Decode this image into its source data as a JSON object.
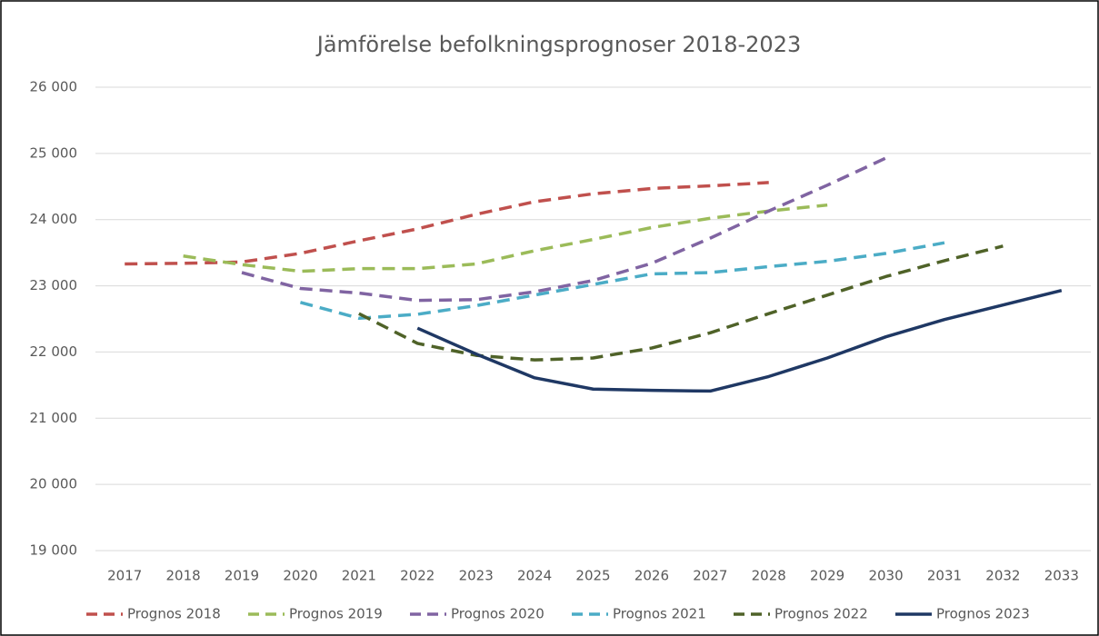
{
  "chart_data": {
    "type": "line",
    "title": "Jämförelse befolkningsprognoser 2018-2023",
    "categories": [
      "2017",
      "2018",
      "2019",
      "2020",
      "2021",
      "2022",
      "2023",
      "2024",
      "2025",
      "2026",
      "2027",
      "2028",
      "2029",
      "2030",
      "2031",
      "2032",
      "2033"
    ],
    "series": [
      {
        "name": "Prognos 2018",
        "color": "#c0504d",
        "dashed": true,
        "values": [
          23330,
          23340,
          23360,
          23490,
          23680,
          23860,
          24080,
          24270,
          24390,
          24470,
          24510,
          24560,
          null,
          null,
          null,
          null,
          null
        ]
      },
      {
        "name": "Prognos 2019",
        "color": "#9bbb59",
        "dashed": true,
        "values": [
          null,
          23450,
          23320,
          23220,
          23260,
          23260,
          23330,
          23530,
          23700,
          23880,
          24020,
          24130,
          24220,
          null,
          null,
          null,
          null
        ]
      },
      {
        "name": "Prognos 2020",
        "color": "#8064a2",
        "dashed": true,
        "values": [
          null,
          null,
          23200,
          22960,
          22890,
          22780,
          22790,
          22910,
          23080,
          23340,
          23720,
          24130,
          24520,
          24930,
          null,
          null,
          null
        ]
      },
      {
        "name": "Prognos 2021",
        "color": "#4bacc6",
        "dashed": true,
        "values": [
          null,
          null,
          null,
          22750,
          22510,
          22570,
          22700,
          22860,
          23020,
          23180,
          23200,
          23290,
          23370,
          23490,
          23650,
          null,
          null
        ]
      },
      {
        "name": "Prognos 2022",
        "color": "#4f6228",
        "dashed": true,
        "values": [
          null,
          null,
          null,
          null,
          22580,
          22130,
          21950,
          21880,
          21910,
          22060,
          22290,
          22580,
          22860,
          23140,
          23380,
          23600,
          null
        ]
      },
      {
        "name": "Prognos 2023",
        "color": "#1f3864",
        "dashed": false,
        "values": [
          null,
          null,
          null,
          null,
          null,
          22360,
          21970,
          21610,
          21440,
          21420,
          21410,
          21630,
          21910,
          22230,
          22490,
          22710,
          22930
        ]
      }
    ],
    "ylim": [
      19000,
      26000
    ],
    "yticks": [
      {
        "value": 19000,
        "label": "19 000"
      },
      {
        "value": 20000,
        "label": "20 000"
      },
      {
        "value": 21000,
        "label": "21 000"
      },
      {
        "value": 22000,
        "label": "22 000"
      },
      {
        "value": 23000,
        "label": "23 000"
      },
      {
        "value": 24000,
        "label": "24 000"
      },
      {
        "value": 25000,
        "label": "25 000"
      },
      {
        "value": 26000,
        "label": "26 000"
      }
    ],
    "grid": true,
    "legend": "bottom"
  }
}
